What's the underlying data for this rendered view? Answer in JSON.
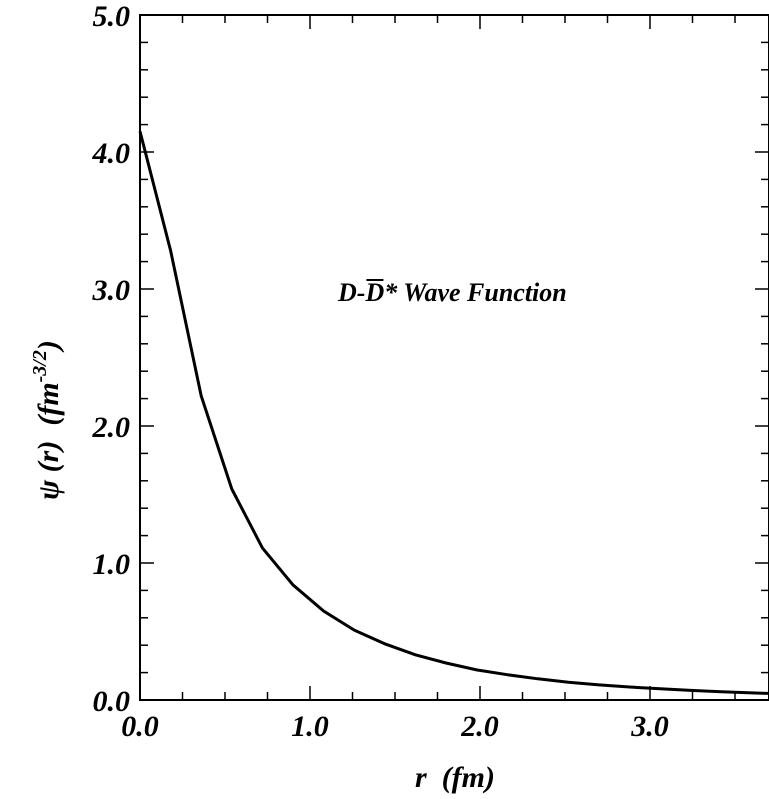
{
  "chart_data": {
    "type": "line",
    "xlabel": "r  (fm)",
    "ylabel_main": "ψ (r)  (fm",
    "ylabel_sup": "-3/2",
    "ylabel_close": ")",
    "annotation": {
      "prefix": "D-",
      "overbar_letter": "D",
      "suffix": "*  Wave Function"
    },
    "xlim": [
      0,
      3.7
    ],
    "ylim": [
      0,
      5.0
    ],
    "x_ticks": [
      "0.0",
      "1.0",
      "2.0",
      "3.0"
    ],
    "y_ticks": [
      "0.0",
      "1.0",
      "2.0",
      "3.0",
      "4.0",
      "5.0"
    ],
    "series": [
      {
        "x": [
          0.0,
          0.18,
          0.36,
          0.54,
          0.72,
          0.9,
          1.08,
          1.26,
          1.44,
          1.62,
          1.8,
          1.98,
          2.16,
          2.34,
          2.52,
          2.7,
          2.88,
          3.06,
          3.24,
          3.42,
          3.6,
          3.7
        ],
        "y": [
          4.15,
          3.28,
          2.22,
          1.54,
          1.11,
          0.84,
          0.65,
          0.51,
          0.41,
          0.33,
          0.27,
          0.22,
          0.185,
          0.155,
          0.13,
          0.11,
          0.095,
          0.082,
          0.07,
          0.06,
          0.052,
          0.048
        ],
        "color": "#000000"
      }
    ]
  }
}
